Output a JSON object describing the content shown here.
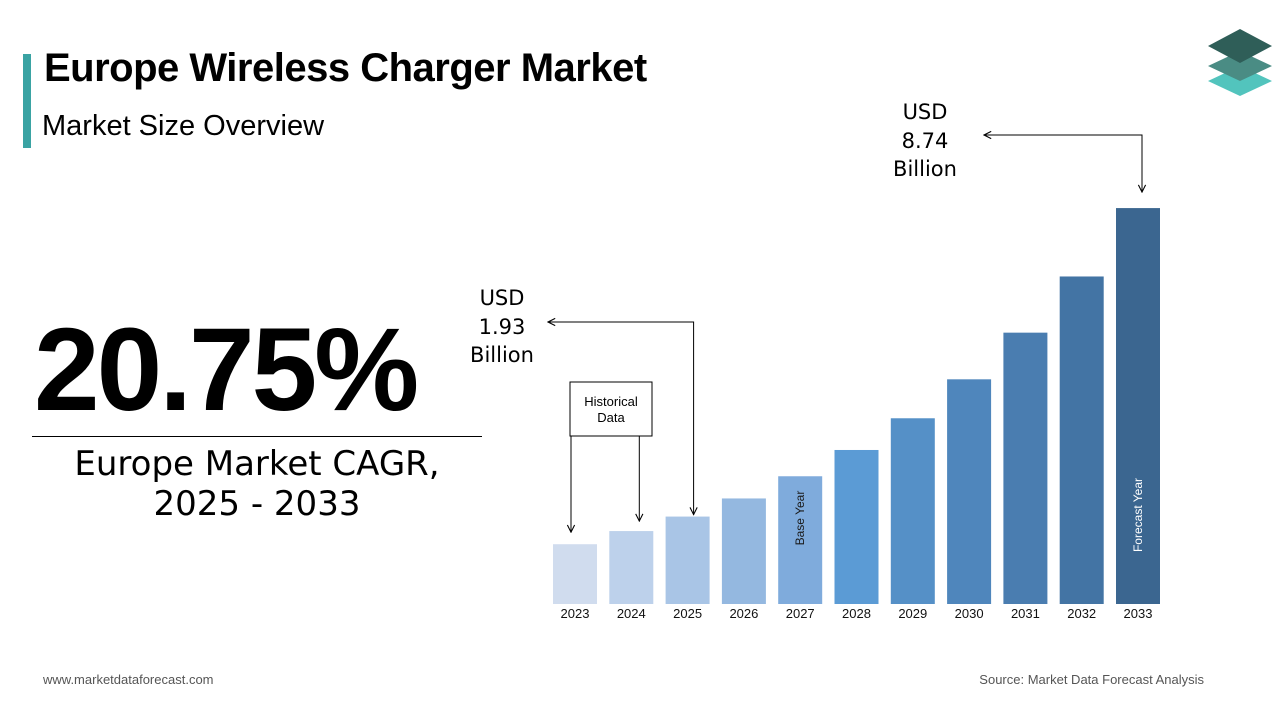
{
  "header": {
    "title": "Europe Wireless Charger Market",
    "subtitle": "Market Size Overview"
  },
  "cagr": {
    "value": "20.75%",
    "label_line1": "Europe Market CAGR,",
    "label_line2": "2025 - 2033"
  },
  "colors": {
    "accent": "#3aa3a3",
    "logo_dark": "#2f5e58",
    "logo_mid": "#4a8c84",
    "logo_light": "#52c4bd"
  },
  "chart_data": {
    "type": "bar",
    "categories": [
      "2023",
      "2024",
      "2025",
      "2026",
      "2027",
      "2028",
      "2029",
      "2030",
      "2031",
      "2032",
      "2033"
    ],
    "values": [
      1.32,
      1.61,
      1.93,
      2.33,
      2.82,
      3.4,
      4.1,
      4.96,
      5.99,
      7.23,
      8.74
    ],
    "bar_colors": [
      "#d0dcee",
      "#bdd1eb",
      "#a9c5e6",
      "#94b8e0",
      "#7fabdc",
      "#5b9bd5",
      "#5590c7",
      "#4f86bc",
      "#4a7db0",
      "#4374a4",
      "#3b6690"
    ],
    "ylim": [
      0,
      10
    ],
    "xlabel": "",
    "ylabel": "",
    "annotations": {
      "start": {
        "category": "2025",
        "line1": "USD",
        "line2": "1.93",
        "line3": "Billion"
      },
      "end": {
        "category": "2033",
        "line1": "USD",
        "line2": "8.74",
        "line3": "Billion"
      },
      "historical_box": {
        "line1": "Historical",
        "line2": "Data",
        "categories": [
          "2023",
          "2024",
          "2025"
        ]
      },
      "base_year": {
        "category": "2027",
        "label": "Base Year"
      },
      "forecast_year": {
        "category": "2033",
        "label": "Forecast Year"
      }
    }
  },
  "footer": {
    "website": "www.marketdataforecast.com",
    "source": "Source: Market Data Forecast Analysis"
  }
}
